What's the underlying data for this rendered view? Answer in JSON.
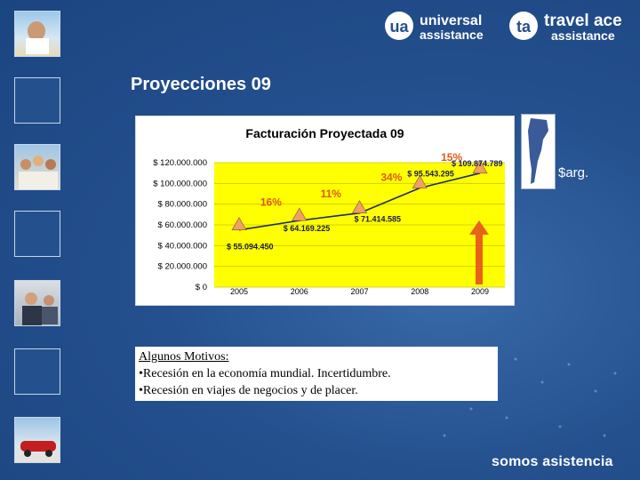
{
  "header": {
    "logo_universal": {
      "line1": "universal",
      "line2": "assistance"
    },
    "logo_travelace": {
      "line1": "travel ace",
      "line2": "assistance"
    }
  },
  "slide": {
    "title": "Proyecciones 09",
    "unit": "$arg.",
    "tagline": "somos asistencia"
  },
  "notes": {
    "heading": "Algunos Motivos:",
    "bullets": [
      "•Recesión en la economía mundial. Incertidumbre.",
      "•Recesión en viajes de negocios y de placer."
    ]
  },
  "chart_data": {
    "type": "line",
    "title": "Facturación Proyectada 09",
    "categories": [
      "2005",
      "2006",
      "2007",
      "2008",
      "2009"
    ],
    "values": [
      55094450,
      64169225,
      71414585,
      95543295,
      109874789
    ],
    "value_labels": [
      "$ 55.094.450",
      "$ 64.169.225",
      "$ 71.414.585",
      "$ 95.543.295",
      "$ 109.874.789"
    ],
    "growth_labels": [
      "16%",
      "11%",
      "34%",
      "15%"
    ],
    "yticks": [
      "$ 0",
      "$ 20.000.000",
      "$ 40.000.000",
      "$ 60.000.000",
      "$ 80.000.000",
      "$ 100.000.000",
      "$ 120.000.000"
    ],
    "ylim": [
      0,
      120000000
    ],
    "grid": true,
    "colors": {
      "plot_bg": "#ffff00",
      "line": "#1a2a66",
      "marker": "#f0a060",
      "growth_label": "#e05a1a",
      "arrow": "#e8621a"
    }
  }
}
